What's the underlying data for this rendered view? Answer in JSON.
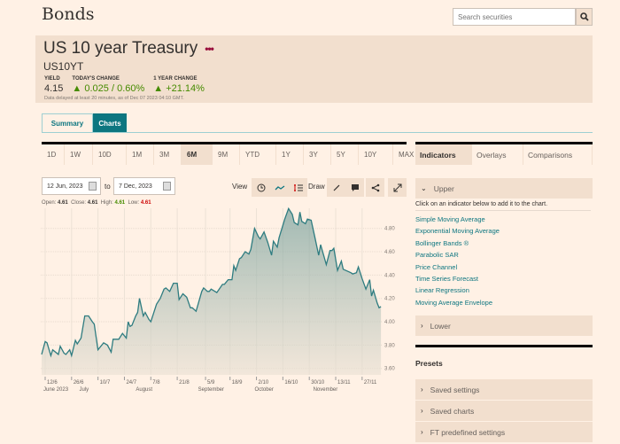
{
  "page_title": "Bonds",
  "search": {
    "placeholder": "Search securities",
    "icon": "search-icon"
  },
  "security": {
    "name": "US 10 year Treasury",
    "symbol": "US10YT",
    "yield_label": "YIELD",
    "yield": "4.15",
    "todays_change_label": "TODAY'S CHANGE",
    "todays_change": "0.025 / 0.60%",
    "year_change_label": "1 YEAR CHANGE",
    "year_change": "+21.14%",
    "delay_note": "Data delayed at least 20 minutes, as of Dec 07 2023 04:10 GMT.",
    "up_color": "#458b00"
  },
  "tabs": [
    {
      "label": "Summary",
      "active": false
    },
    {
      "label": "Charts",
      "active": true
    }
  ],
  "ranges": [
    {
      "label": "1D"
    },
    {
      "label": "1W"
    },
    {
      "label": "10D"
    },
    {
      "label": "1M"
    },
    {
      "label": "3M"
    },
    {
      "label": "6M",
      "active": true
    },
    {
      "label": "9M"
    },
    {
      "label": "YTD"
    },
    {
      "label": "1Y"
    },
    {
      "label": "3Y"
    },
    {
      "label": "5Y"
    },
    {
      "label": "10Y"
    },
    {
      "label": "MAX"
    }
  ],
  "dates": {
    "from": "12 Jun, 2023",
    "to_label": "to",
    "to": "7 Dec, 2023"
  },
  "toolbar": {
    "view_label": "View",
    "draw_label": "Draw"
  },
  "ohlc": {
    "open_label": "Open:",
    "open": "4.61",
    "close_label": "Close:",
    "close": "4.61",
    "high_label": "High:",
    "high": "4.61",
    "low_label": "Low:",
    "low": "4.61",
    "high_color": "#458b00",
    "low_color": "#cc0000"
  },
  "chart_data": {
    "type": "area",
    "line_color": "#2e7c80",
    "ylim": [
      3.55,
      5.0
    ],
    "yticks": [
      3.6,
      3.8,
      4.0,
      4.2,
      4.4,
      4.6,
      4.8
    ],
    "ytick_labels": [
      "3.60",
      "3.80",
      "4.00",
      "4.20",
      "4.40",
      "4.60",
      "4.80"
    ],
    "xticks": [
      {
        "date": "2023-06-12",
        "label": "12/6"
      },
      {
        "date": "2023-06-26",
        "label": "26/6"
      },
      {
        "date": "2023-07-10",
        "label": "10/7"
      },
      {
        "date": "2023-07-24",
        "label": "24/7"
      },
      {
        "date": "2023-08-07",
        "label": "7/8"
      },
      {
        "date": "2023-08-21",
        "label": "21/8"
      },
      {
        "date": "2023-09-05",
        "label": "5/9"
      },
      {
        "date": "2023-09-18",
        "label": "18/9"
      },
      {
        "date": "2023-10-02",
        "label": "2/10"
      },
      {
        "date": "2023-10-16",
        "label": "16/10"
      },
      {
        "date": "2023-10-30",
        "label": "30/10"
      },
      {
        "date": "2023-11-13",
        "label": "13/11"
      },
      {
        "date": "2023-11-27",
        "label": "27/11"
      }
    ],
    "month_labels": [
      {
        "date": "2023-06-12",
        "label": "June 2023"
      },
      {
        "date": "2023-07-01",
        "label": "July"
      },
      {
        "date": "2023-07-31",
        "label": "August"
      },
      {
        "date": "2023-09-02",
        "label": "September"
      },
      {
        "date": "2023-10-02",
        "label": "October"
      },
      {
        "date": "2023-11-02",
        "label": "November"
      }
    ],
    "grid": true,
    "points": [
      [
        "2023-06-10",
        3.72
      ],
      [
        "2023-06-12",
        3.83
      ],
      [
        "2023-06-13",
        3.82
      ],
      [
        "2023-06-15",
        3.71
      ],
      [
        "2023-06-16",
        3.76
      ],
      [
        "2023-06-19",
        3.72
      ],
      [
        "2023-06-20",
        3.79
      ],
      [
        "2023-06-22",
        3.73
      ],
      [
        "2023-06-23",
        3.72
      ],
      [
        "2023-06-25",
        3.76
      ],
      [
        "2023-06-26",
        3.71
      ],
      [
        "2023-06-28",
        3.84
      ],
      [
        "2023-06-29",
        3.81
      ],
      [
        "2023-07-01",
        3.86
      ],
      [
        "2023-07-03",
        4.05
      ],
      [
        "2023-07-05",
        4.05
      ],
      [
        "2023-07-07",
        4.0
      ],
      [
        "2023-07-08",
        3.98
      ],
      [
        "2023-07-10",
        3.76
      ],
      [
        "2023-07-13",
        3.82
      ],
      [
        "2023-07-15",
        3.8
      ],
      [
        "2023-07-17",
        3.74
      ],
      [
        "2023-07-18",
        3.85
      ],
      [
        "2023-07-21",
        3.85
      ],
      [
        "2023-07-23",
        3.9
      ],
      [
        "2023-07-25",
        3.86
      ],
      [
        "2023-07-26",
        4.0
      ],
      [
        "2023-07-27",
        3.96
      ],
      [
        "2023-07-28",
        3.97
      ],
      [
        "2023-07-30",
        4.05
      ],
      [
        "2023-07-31",
        4.08
      ],
      [
        "2023-08-01",
        4.2
      ],
      [
        "2023-08-03",
        4.05
      ],
      [
        "2023-08-04",
        4.08
      ],
      [
        "2023-08-06",
        4.02
      ],
      [
        "2023-08-07",
        4.0
      ],
      [
        "2023-08-10",
        4.15
      ],
      [
        "2023-08-12",
        4.2
      ],
      [
        "2023-08-14",
        4.28
      ],
      [
        "2023-08-15",
        4.29
      ],
      [
        "2023-08-17",
        4.26
      ],
      [
        "2023-08-19",
        4.33
      ],
      [
        "2023-08-21",
        4.33
      ],
      [
        "2023-08-22",
        4.19
      ],
      [
        "2023-08-24",
        4.24
      ],
      [
        "2023-08-26",
        4.21
      ],
      [
        "2023-08-28",
        4.12
      ],
      [
        "2023-08-29",
        4.12
      ],
      [
        "2023-08-31",
        4.09
      ],
      [
        "2023-09-03",
        4.26
      ],
      [
        "2023-09-04",
        4.29
      ],
      [
        "2023-09-06",
        4.26
      ],
      [
        "2023-09-07",
        4.26
      ],
      [
        "2023-09-08",
        4.28
      ],
      [
        "2023-09-11",
        4.25
      ],
      [
        "2023-09-14",
        4.32
      ],
      [
        "2023-09-15",
        4.32
      ],
      [
        "2023-09-17",
        4.36
      ],
      [
        "2023-09-19",
        4.36
      ],
      [
        "2023-09-20",
        4.48
      ],
      [
        "2023-09-21",
        4.44
      ],
      [
        "2023-09-23",
        4.54
      ],
      [
        "2023-09-24",
        4.55
      ],
      [
        "2023-09-26",
        4.6
      ],
      [
        "2023-09-28",
        4.58
      ],
      [
        "2023-09-29",
        4.62
      ],
      [
        "2023-10-01",
        4.8
      ],
      [
        "2023-10-03",
        4.73
      ],
      [
        "2023-10-04",
        4.71
      ],
      [
        "2023-10-06",
        4.77
      ],
      [
        "2023-10-08",
        4.68
      ],
      [
        "2023-10-10",
        4.57
      ],
      [
        "2023-10-11",
        4.69
      ],
      [
        "2023-10-13",
        4.64
      ],
      [
        "2023-10-14",
        4.72
      ],
      [
        "2023-10-17",
        4.88
      ],
      [
        "2023-10-19",
        4.97
      ],
      [
        "2023-10-21",
        4.92
      ],
      [
        "2023-10-22",
        4.85
      ],
      [
        "2023-10-24",
        4.83
      ],
      [
        "2023-10-25",
        4.94
      ],
      [
        "2023-10-26",
        4.86
      ],
      [
        "2023-10-28",
        4.84
      ],
      [
        "2023-10-29",
        4.88
      ],
      [
        "2023-10-31",
        4.87
      ],
      [
        "2023-11-02",
        4.72
      ],
      [
        "2023-11-04",
        4.57
      ],
      [
        "2023-11-05",
        4.66
      ],
      [
        "2023-11-08",
        4.49
      ],
      [
        "2023-11-10",
        4.61
      ],
      [
        "2023-11-11",
        4.61
      ],
      [
        "2023-11-12",
        4.63
      ],
      [
        "2023-11-14",
        4.44
      ],
      [
        "2023-11-16",
        4.52
      ],
      [
        "2023-11-17",
        4.45
      ],
      [
        "2023-11-21",
        4.42
      ],
      [
        "2023-11-22",
        4.41
      ],
      [
        "2023-11-24",
        4.42
      ],
      [
        "2023-11-25",
        4.47
      ],
      [
        "2023-11-27",
        4.37
      ],
      [
        "2023-11-29",
        4.28
      ],
      [
        "2023-12-01",
        4.36
      ],
      [
        "2023-12-02",
        4.22
      ],
      [
        "2023-12-03",
        4.27
      ],
      [
        "2023-12-05",
        4.16
      ],
      [
        "2023-12-06",
        4.12
      ],
      [
        "2023-12-07",
        4.13
      ]
    ]
  },
  "right_panel": {
    "tabs": [
      {
        "label": "Indicators",
        "active": true
      },
      {
        "label": "Overlays"
      },
      {
        "label": "Comparisons"
      }
    ],
    "upper_label": "Upper",
    "instruction": "Click on an indicator below to add it to the chart.",
    "indicators": [
      "Simple Moving Average",
      "Exponential Moving Average",
      "Bollinger Bands ®",
      "Parabolic SAR",
      "Price Channel",
      "Time Series Forecast",
      "Linear Regression",
      "Moving Average Envelope"
    ],
    "lower_label": "Lower",
    "presets_title": "Presets",
    "presets": [
      "Saved settings",
      "Saved charts",
      "FT predefined settings"
    ]
  }
}
